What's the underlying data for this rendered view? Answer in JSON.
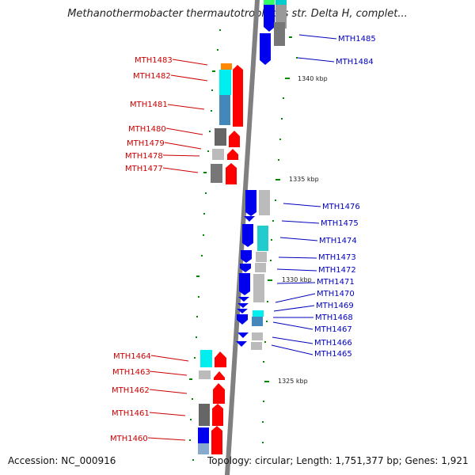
{
  "title": "Methanothermobacter thermautotrophicus str. Delta H, complet...",
  "accession": "Accession: NC_000916",
  "topology": "Topology: circular; Length: 1,751,377 bp; Genes: 1,921",
  "colors": {
    "forward_gene": "#ff0000",
    "reverse_gene": "#0000ee",
    "label_left": "#cc0000",
    "label_right": "#0000bb",
    "backbone": "#808080",
    "tick": "#008800"
  },
  "kbp_ticks": [
    "1340 kbp",
    "1335 kbp",
    "1330 kbp",
    "1325 kbp"
  ],
  "left_labels": [
    "MTH1483",
    "MTH1482",
    "MTH1481",
    "MTH1480",
    "MTH1479",
    "MTH1478",
    "MTH1477",
    "MTH1464",
    "MTH1463",
    "MTH1462",
    "MTH1461",
    "MTH1460"
  ],
  "right_labels": [
    "MTH1485",
    "MTH1484",
    "MTH1476",
    "MTH1475",
    "MTH1474",
    "MTH1473",
    "MTH1472",
    "MTH1471",
    "MTH1470",
    "MTH1469",
    "MTH1468",
    "MTH1467",
    "MTH1466",
    "MTH1465"
  ]
}
